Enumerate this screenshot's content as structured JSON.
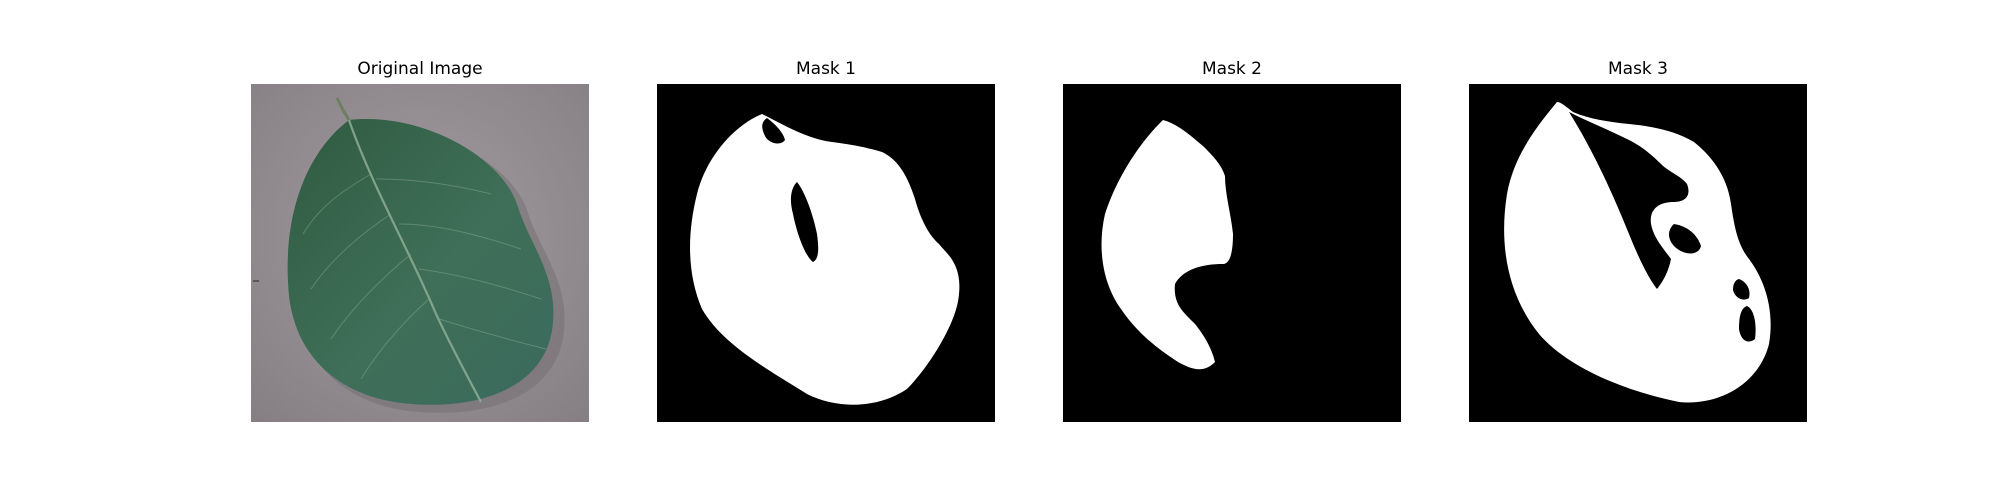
{
  "figure": {
    "panels": [
      {
        "id": "original",
        "title": "Original Image",
        "kind": "photo",
        "background": "#8e888b",
        "leaf_color": "#3c6b52"
      },
      {
        "id": "mask1",
        "title": "Mask 1",
        "kind": "mask",
        "background": "#000000",
        "foreground": "#ffffff"
      },
      {
        "id": "mask2",
        "title": "Mask 2",
        "kind": "mask",
        "background": "#000000",
        "foreground": "#ffffff"
      },
      {
        "id": "mask3",
        "title": "Mask 3",
        "kind": "mask",
        "background": "#000000",
        "foreground": "#ffffff"
      }
    ]
  }
}
